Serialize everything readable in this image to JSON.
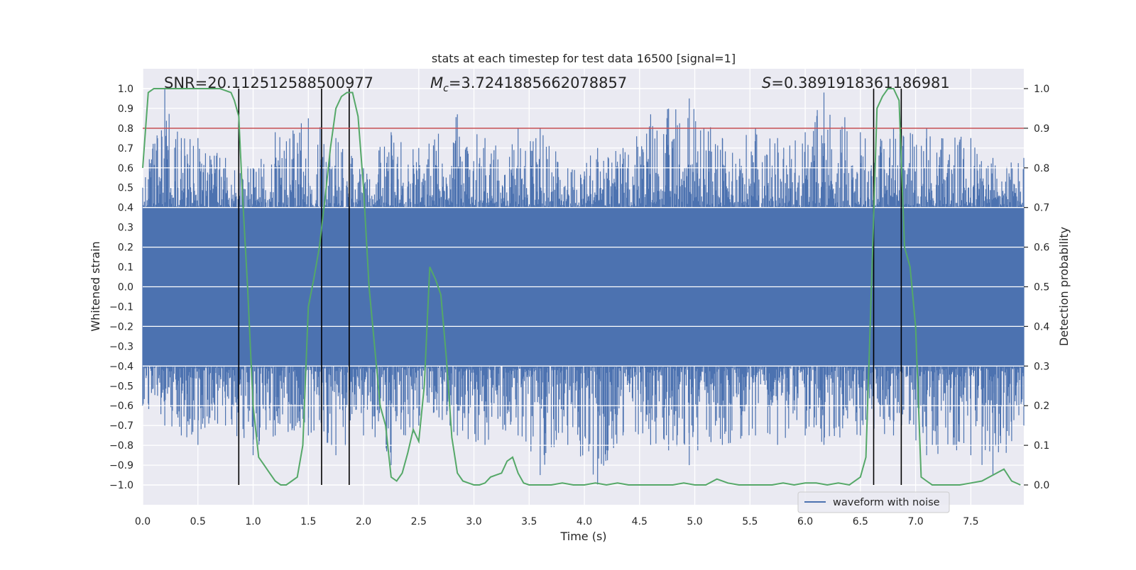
{
  "chart_data": {
    "type": "line",
    "title": "stats at each timestep for test data 16500 [signal=1]",
    "xlabel": "Time (s)",
    "ylabel": "Whitened strain",
    "y2label": "Detection probability",
    "xlim": [
      0.0,
      7.98
    ],
    "ylim": [
      -1.1,
      1.1
    ],
    "y2lim": [
      -0.05,
      1.05
    ],
    "xticks": [
      0.0,
      0.5,
      1.0,
      1.5,
      2.0,
      2.5,
      3.0,
      3.5,
      4.0,
      4.5,
      5.0,
      5.5,
      6.0,
      6.5,
      7.0,
      7.5
    ],
    "xtick_labels": [
      "0.0",
      "0.5",
      "1.0",
      "1.5",
      "2.0",
      "2.5",
      "3.0",
      "3.5",
      "4.0",
      "4.5",
      "5.0",
      "5.5",
      "6.0",
      "6.5",
      "7.0",
      "7.5"
    ],
    "yticks": [
      1.0,
      0.9,
      0.8,
      0.7,
      0.6,
      0.5,
      0.4,
      0.3,
      0.2,
      0.1,
      0.0,
      -0.1,
      -0.2,
      -0.3,
      -0.4,
      -0.5,
      -0.6,
      -0.7,
      -0.8,
      -0.9,
      -1.0
    ],
    "ytick_labels": [
      "1.0",
      "0.9",
      "0.8",
      "0.7",
      "0.6",
      "0.5",
      "0.4",
      "0.3",
      "0.2",
      "0.1",
      "0.0",
      "−0.1",
      "−0.2",
      "−0.3",
      "−0.4",
      "−0.5",
      "−0.6",
      "−0.7",
      "−0.8",
      "−0.9",
      "−1.0"
    ],
    "y2ticks": [
      1.0,
      0.9,
      0.8,
      0.7,
      0.6,
      0.5,
      0.4,
      0.3,
      0.2,
      0.1,
      0.0
    ],
    "y2tick_labels": [
      "1.0",
      "0.9",
      "0.8",
      "0.7",
      "0.6",
      "0.5",
      "0.4",
      "0.3",
      "0.2",
      "0.1",
      "0.0"
    ],
    "grid": true,
    "legend": {
      "entries": [
        "waveform with noise"
      ],
      "placement": "lower-right"
    },
    "annotations": {
      "snr_text": "SNR=20.112512588500977",
      "mc_prefix": "M",
      "mc_sub": "c",
      "mc_value": "=3.7241885662078857",
      "s_prefix": "S",
      "s_value": "=0.3891918361186981"
    },
    "threshold_line": {
      "y2": 0.9,
      "color": "#c44e52"
    },
    "vertical_lines": [
      0.87,
      1.62,
      1.87,
      6.62,
      6.87
    ],
    "waveform": {
      "name": "waveform with noise",
      "color": "#4c72b0",
      "envelope": [
        {
          "x": 0.0,
          "upper": 0.5,
          "lower": -0.6
        },
        {
          "x": 0.2,
          "upper": 1.0,
          "lower": -0.7
        },
        {
          "x": 0.35,
          "upper": 0.75,
          "lower": -0.75
        },
        {
          "x": 0.5,
          "upper": 0.75,
          "lower": -0.8
        },
        {
          "x": 0.75,
          "upper": 0.65,
          "lower": -0.7
        },
        {
          "x": 1.0,
          "upper": 0.6,
          "lower": -0.85
        },
        {
          "x": 1.2,
          "upper": 0.78,
          "lower": -0.75
        },
        {
          "x": 1.5,
          "upper": 0.85,
          "lower": -0.75
        },
        {
          "x": 1.75,
          "upper": 0.75,
          "lower": -0.85
        },
        {
          "x": 2.0,
          "upper": 0.6,
          "lower": -0.75
        },
        {
          "x": 2.25,
          "upper": 0.78,
          "lower": -0.9
        },
        {
          "x": 2.5,
          "upper": 0.7,
          "lower": -0.7
        },
        {
          "x": 2.85,
          "upper": 0.87,
          "lower": -0.75
        },
        {
          "x": 3.1,
          "upper": 0.75,
          "lower": -0.8
        },
        {
          "x": 3.4,
          "upper": 0.8,
          "lower": -0.75
        },
        {
          "x": 3.6,
          "upper": 0.8,
          "lower": -0.95
        },
        {
          "x": 3.85,
          "upper": 0.6,
          "lower": -0.8
        },
        {
          "x": 4.12,
          "upper": 0.7,
          "lower": -1.0
        },
        {
          "x": 4.35,
          "upper": 0.7,
          "lower": -0.75
        },
        {
          "x": 4.6,
          "upper": 0.87,
          "lower": -0.8
        },
        {
          "x": 4.95,
          "upper": 0.95,
          "lower": -0.9
        },
        {
          "x": 5.25,
          "upper": 0.75,
          "lower": -0.8
        },
        {
          "x": 5.55,
          "upper": 0.8,
          "lower": -0.75
        },
        {
          "x": 5.75,
          "upper": 0.75,
          "lower": -0.8
        },
        {
          "x": 6.0,
          "upper": 0.78,
          "lower": -0.75
        },
        {
          "x": 6.17,
          "upper": 0.98,
          "lower": -0.8
        },
        {
          "x": 6.5,
          "upper": 0.78,
          "lower": -0.75
        },
        {
          "x": 6.8,
          "upper": 0.8,
          "lower": -0.75
        },
        {
          "x": 7.1,
          "upper": 0.8,
          "lower": -0.85
        },
        {
          "x": 7.5,
          "upper": 0.75,
          "lower": -0.85
        },
        {
          "x": 7.7,
          "upper": 0.65,
          "lower": -0.95
        },
        {
          "x": 7.98,
          "upper": 0.65,
          "lower": -0.7
        }
      ],
      "core": [
        -0.4,
        0.4
      ]
    },
    "detection_probability": {
      "color": "#55a868",
      "x": [
        0.0,
        0.05,
        0.1,
        0.15,
        0.2,
        0.3,
        0.4,
        0.5,
        0.6,
        0.7,
        0.8,
        0.83,
        0.87,
        0.9,
        0.95,
        1.0,
        1.05,
        1.1,
        1.15,
        1.2,
        1.25,
        1.3,
        1.35,
        1.4,
        1.45,
        1.5,
        1.55,
        1.6,
        1.65,
        1.7,
        1.75,
        1.8,
        1.85,
        1.9,
        1.95,
        2.0,
        2.05,
        2.1,
        2.15,
        2.2,
        2.25,
        2.3,
        2.35,
        2.4,
        2.45,
        2.5,
        2.55,
        2.6,
        2.65,
        2.7,
        2.75,
        2.8,
        2.85,
        2.9,
        2.95,
        3.0,
        3.05,
        3.1,
        3.15,
        3.2,
        3.25,
        3.3,
        3.35,
        3.4,
        3.45,
        3.5,
        3.55,
        3.6,
        3.7,
        3.8,
        3.9,
        4.0,
        4.1,
        4.2,
        4.3,
        4.4,
        4.5,
        4.6,
        4.7,
        4.8,
        4.9,
        5.0,
        5.1,
        5.2,
        5.3,
        5.4,
        5.5,
        5.6,
        5.7,
        5.8,
        5.9,
        6.0,
        6.1,
        6.2,
        6.3,
        6.4,
        6.5,
        6.55,
        6.6,
        6.65,
        6.7,
        6.75,
        6.8,
        6.85,
        6.9,
        6.95,
        7.0,
        7.05,
        7.1,
        7.15,
        7.2,
        7.3,
        7.4,
        7.5,
        7.6,
        7.7,
        7.8,
        7.87,
        7.95
      ],
      "y": [
        0.8,
        0.99,
        1.0,
        1.0,
        1.0,
        1.0,
        1.0,
        1.0,
        1.0,
        1.0,
        0.99,
        0.97,
        0.93,
        0.75,
        0.5,
        0.2,
        0.07,
        0.05,
        0.03,
        0.01,
        0.0,
        0.0,
        0.01,
        0.02,
        0.1,
        0.45,
        0.52,
        0.6,
        0.72,
        0.85,
        0.95,
        0.98,
        0.99,
        0.99,
        0.93,
        0.75,
        0.5,
        0.35,
        0.2,
        0.15,
        0.02,
        0.01,
        0.03,
        0.08,
        0.14,
        0.11,
        0.25,
        0.55,
        0.52,
        0.48,
        0.32,
        0.12,
        0.03,
        0.01,
        0.005,
        0.0,
        0.0,
        0.005,
        0.02,
        0.025,
        0.03,
        0.06,
        0.07,
        0.03,
        0.005,
        0.0,
        0.0,
        0.0,
        0.0,
        0.005,
        0.0,
        0.0,
        0.005,
        0.0,
        0.005,
        0.0,
        0.0,
        0.0,
        0.0,
        0.0,
        0.005,
        0.0,
        0.0,
        0.015,
        0.005,
        0.0,
        0.0,
        0.0,
        0.0,
        0.005,
        0.0,
        0.005,
        0.005,
        0.0,
        0.005,
        0.0,
        0.02,
        0.07,
        0.5,
        0.95,
        0.98,
        1.0,
        1.0,
        0.97,
        0.6,
        0.55,
        0.4,
        0.02,
        0.01,
        0.0,
        0.0,
        0.0,
        0.0,
        0.005,
        0.01,
        0.025,
        0.04,
        0.01,
        0.0
      ]
    }
  }
}
